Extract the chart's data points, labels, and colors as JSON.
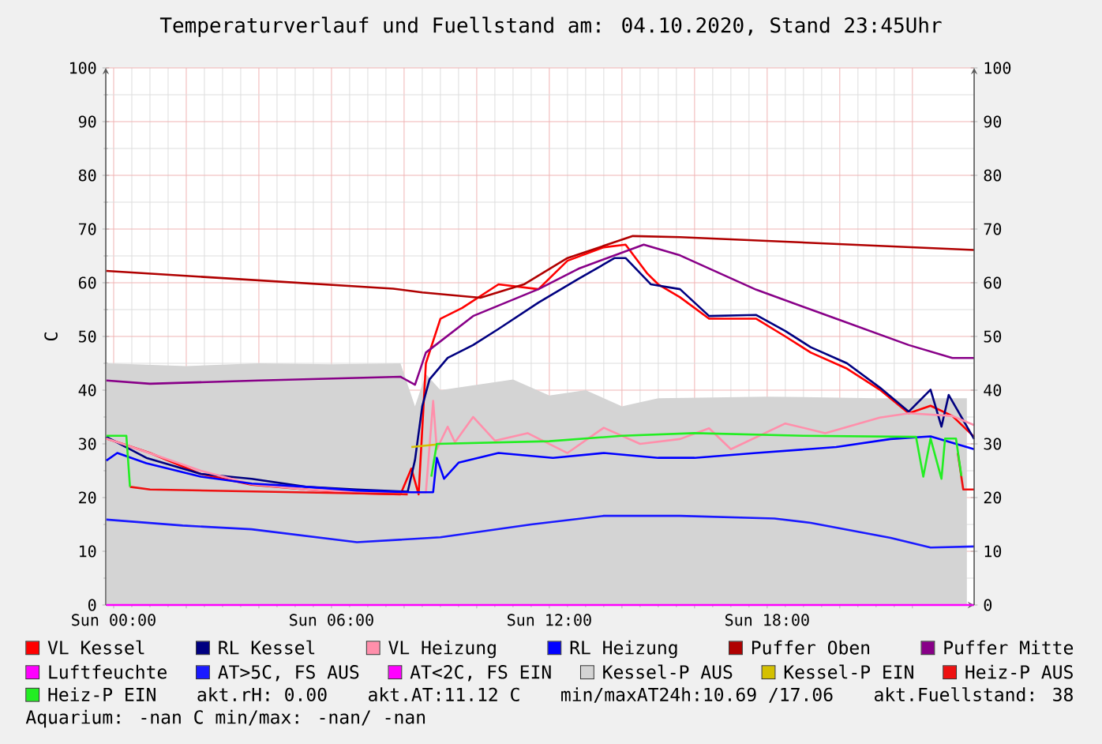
{
  "chart_data": {
    "type": "line",
    "title": "Temperaturverlauf und Fuellstand am: 04.10.2020, Stand 23:45Uhr",
    "ylabel": "C",
    "xlim": [
      "2020-10-03T23:47",
      "2020-10-04T23:42"
    ],
    "ylim": [
      0,
      100
    ],
    "y2lim": [
      0,
      100
    ],
    "xticks": [
      {
        "value": "2020-10-04T00:00",
        "label": "Sun 00:00"
      },
      {
        "value": "2020-10-04T02:00",
        "label": null
      },
      {
        "value": "2020-10-04T04:00",
        "label": null
      },
      {
        "value": "2020-10-04T06:00",
        "label": "Sun 06:00"
      },
      {
        "value": "2020-10-04T08:00",
        "label": null
      },
      {
        "value": "2020-10-04T10:00",
        "label": null
      },
      {
        "value": "2020-10-04T12:00",
        "label": "Sun 12:00"
      },
      {
        "value": "2020-10-04T14:00",
        "label": null
      },
      {
        "value": "2020-10-04T16:00",
        "label": null
      },
      {
        "value": "2020-10-04T18:00",
        "label": "Sun 18:00"
      },
      {
        "value": "2020-10-04T20:00",
        "label": null
      },
      {
        "value": "2020-10-04T22:00",
        "label": null
      }
    ],
    "yticks": [
      0,
      10,
      20,
      30,
      40,
      50,
      60,
      70,
      80,
      90,
      100
    ],
    "y2ticks": [
      0,
      10,
      20,
      30,
      40,
      50,
      60,
      70,
      80,
      90,
      100
    ],
    "grid": true,
    "legend": "bottom",
    "series": [
      {
        "name": "VL Kessel",
        "color": "#ff0000",
        "x": [
          "2020-10-03T23:48",
          "2020-10-04T01:00",
          "2020-10-04T02:24",
          "2020-10-04T03:48",
          "2020-10-04T05:18",
          "2020-10-04T06:42",
          "2020-10-04T07:54",
          "2020-10-04T08:12",
          "2020-10-04T08:24",
          "2020-10-04T08:36",
          "2020-10-04T09:00",
          "2020-10-04T09:36",
          "2020-10-04T10:36",
          "2020-10-04T11:42",
          "2020-10-04T12:30",
          "2020-10-04T13:30",
          "2020-10-04T14:06",
          "2020-10-04T14:42",
          "2020-10-04T15:00",
          "2020-10-04T15:36",
          "2020-10-04T16:24",
          "2020-10-04T17:42",
          "2020-10-04T18:30",
          "2020-10-04T19:12",
          "2020-10-04T20:12",
          "2020-10-04T21:06",
          "2020-10-04T21:54",
          "2020-10-04T22:30",
          "2020-10-04T23:06",
          "2020-10-04T23:42"
        ],
        "values": [
          31,
          28.3,
          24.4,
          22.4,
          21.5,
          20.8,
          20.6,
          25.4,
          20.6,
          45,
          53.3,
          55.3,
          59.7,
          58.8,
          64.1,
          66.6,
          67.1,
          61.7,
          59.7,
          57.3,
          53.3,
          53.3,
          50,
          47,
          44,
          40.1,
          35.7,
          37.1,
          35.2,
          31.3
        ]
      },
      {
        "name": "RL Kessel",
        "color": "#000080",
        "x": [
          "2020-10-03T23:48",
          "2020-10-04T00:54",
          "2020-10-04T02:24",
          "2020-10-04T03:48",
          "2020-10-04T05:18",
          "2020-10-04T06:42",
          "2020-10-04T08:06",
          "2020-10-04T08:18",
          "2020-10-04T08:30",
          "2020-10-04T08:42",
          "2020-10-04T09:12",
          "2020-10-04T09:54",
          "2020-10-04T10:36",
          "2020-10-04T11:42",
          "2020-10-04T12:48",
          "2020-10-04T13:48",
          "2020-10-04T14:06",
          "2020-10-04T14:48",
          "2020-10-04T15:36",
          "2020-10-04T16:24",
          "2020-10-04T17:42",
          "2020-10-04T18:30",
          "2020-10-04T19:12",
          "2020-10-04T20:12",
          "2020-10-04T21:06",
          "2020-10-04T21:54",
          "2020-10-04T22:30",
          "2020-10-04T22:48",
          "2020-10-04T23:00",
          "2020-10-04T23:42"
        ],
        "values": [
          31.3,
          27.4,
          24.4,
          23.5,
          22,
          21.5,
          21.1,
          27,
          37,
          42,
          46,
          48.4,
          51.4,
          56.3,
          60.7,
          64.6,
          64.6,
          59.7,
          58.8,
          53.8,
          54,
          51,
          48,
          45,
          40.5,
          36,
          40.1,
          33.2,
          39.1,
          30.9
        ]
      },
      {
        "name": "VL Heizung",
        "color": "#ff8fab",
        "x": [
          "2020-10-03T23:48",
          "2020-10-04T00:54",
          "2020-10-04T02:24",
          "2020-10-04T03:48",
          "2020-10-04T05:18",
          "2020-10-04T06:42",
          "2020-10-04T08:06",
          "2020-10-04T08:36",
          "2020-10-04T08:48",
          "2020-10-04T08:54",
          "2020-10-04T09:12",
          "2020-10-04T09:24",
          "2020-10-04T09:54",
          "2020-10-04T10:30",
          "2020-10-04T11:24",
          "2020-10-04T12:30",
          "2020-10-04T13:30",
          "2020-10-04T14:30",
          "2020-10-04T15:36",
          "2020-10-04T16:24",
          "2020-10-04T17:00",
          "2020-10-04T18:30",
          "2020-10-04T19:36",
          "2020-10-04T21:06",
          "2020-10-04T21:54",
          "2020-10-04T23:06",
          "2020-10-04T23:42"
        ],
        "values": [
          31,
          28.5,
          25,
          22.5,
          21.5,
          21,
          21,
          21,
          38,
          29,
          33.2,
          30.3,
          35,
          30.6,
          32,
          28.3,
          33,
          30,
          30.9,
          32.9,
          29,
          33.8,
          32,
          34.9,
          35.7,
          35.2,
          33.5
        ]
      },
      {
        "name": "RL Heizung",
        "color": "#0000ff",
        "x": [
          "2020-10-03T23:48",
          "2020-10-04T00:06",
          "2020-10-04T00:54",
          "2020-10-04T02:24",
          "2020-10-04T03:48",
          "2020-10-04T05:18",
          "2020-10-04T06:42",
          "2020-10-04T08:12",
          "2020-10-04T08:48",
          "2020-10-04T08:54",
          "2020-10-04T09:06",
          "2020-10-04T09:30",
          "2020-10-04T10:36",
          "2020-10-04T12:06",
          "2020-10-04T13:30",
          "2020-10-04T15:00",
          "2020-10-04T16:00",
          "2020-10-04T17:42",
          "2020-10-04T19:54",
          "2020-10-04T21:24",
          "2020-10-04T22:30",
          "2020-10-04T23:42"
        ],
        "values": [
          26.9,
          28.3,
          26.4,
          23.9,
          22.6,
          22,
          21.3,
          21,
          21,
          27.4,
          23.5,
          26.5,
          28.3,
          27.4,
          28.3,
          27.4,
          27.4,
          28.3,
          29.4,
          30.9,
          31.4,
          29
        ]
      },
      {
        "name": "Puffer Oben",
        "color": "#b00000",
        "x": [
          "2020-10-03T23:48",
          "2020-10-04T07:42",
          "2020-10-04T08:30",
          "2020-10-04T10:06",
          "2020-10-04T11:18",
          "2020-10-04T12:30",
          "2020-10-04T14:18",
          "2020-10-04T15:36",
          "2020-10-04T23:42"
        ],
        "values": [
          62.2,
          58.9,
          58.2,
          57.2,
          59.7,
          64.6,
          68.7,
          68.5,
          66.1
        ]
      },
      {
        "name": "Puffer Mitte",
        "color": "#880088",
        "x": [
          "2020-10-03T23:48",
          "2020-10-04T01:00",
          "2020-10-04T04:00",
          "2020-10-04T07:54",
          "2020-10-04T08:18",
          "2020-10-04T08:36",
          "2020-10-04T09:54",
          "2020-10-04T11:42",
          "2020-10-04T12:48",
          "2020-10-04T14:36",
          "2020-10-04T15:36",
          "2020-10-04T17:42",
          "2020-10-04T19:54",
          "2020-10-04T21:54",
          "2020-10-04T23:06",
          "2020-10-04T23:42"
        ],
        "values": [
          41.8,
          41.2,
          41.8,
          42.5,
          41,
          47,
          53.8,
          58.8,
          62.6,
          67.1,
          65.1,
          58.7,
          53.3,
          48.4,
          46,
          46
        ]
      },
      {
        "name": "Luftfeuchte",
        "color": "#ff00ff",
        "x": [
          "2020-10-03T23:48",
          "2020-10-04T23:42"
        ],
        "values": [
          0,
          0
        ]
      },
      {
        "name": "AT>5C, FS AUS",
        "color": "#1a1aff",
        "x": [
          "2020-10-03T23:48",
          "2020-10-04T01:54",
          "2020-10-04T03:48",
          "2020-10-04T06:42",
          "2020-10-04T09:00",
          "2020-10-04T11:30",
          "2020-10-04T13:30",
          "2020-10-04T15:36",
          "2020-10-04T18:12",
          "2020-10-04T19:12",
          "2020-10-04T21:24",
          "2020-10-04T22:30",
          "2020-10-04T23:42"
        ],
        "values": [
          15.9,
          14.8,
          14.1,
          11.7,
          12.6,
          15,
          16.6,
          16.6,
          16.1,
          15.3,
          12.5,
          10.7,
          10.9
        ]
      },
      {
        "name": "AT<2C, FS EIN",
        "color": "#ff00ff"
      },
      {
        "name": "Kessel-P AUS",
        "color": "#d4d4d4",
        "type": "area",
        "x": [
          "2020-10-03T23:48",
          "2020-10-04T02:00",
          "2020-10-04T04:00",
          "2020-10-04T06:00",
          "2020-10-04T07:54",
          "2020-10-04T08:18",
          "2020-10-04T08:36",
          "2020-10-04T09:00",
          "2020-10-04T10:00",
          "2020-10-04T11:00",
          "2020-10-04T12:00",
          "2020-10-04T13:00",
          "2020-10-04T14:00",
          "2020-10-04T15:00",
          "2020-10-04T18:00",
          "2020-10-04T21:00",
          "2020-10-04T23:30"
        ],
        "values": [
          45,
          44.5,
          45,
          44.8,
          45,
          37,
          43,
          40,
          41,
          42,
          39,
          40,
          37,
          38.5,
          38.8,
          38.5,
          38.5
        ]
      },
      {
        "name": "Kessel-P EIN",
        "color": "#d4c000",
        "x": [
          "2020-10-04T08:12",
          "2020-10-04T08:54"
        ],
        "values": [
          29.4,
          29.9
        ]
      },
      {
        "name": "Heiz-P AUS",
        "color": "#ee1111",
        "x": [
          "2020-10-04T00:27",
          "2020-10-04T01:00",
          "2020-10-04T08:06",
          "2020-10-04T08:09",
          "2020-10-04T23:15",
          "2020-10-04T23:24",
          "2020-10-04T23:42"
        ],
        "values": [
          22,
          21.5,
          20.6,
          null,
          28.3,
          21.5,
          21.5
        ]
      },
      {
        "name": "Heiz-P EIN",
        "color": "#22ee22",
        "x": [
          "2020-10-03T23:48",
          "2020-10-04T00:21",
          "2020-10-04T00:27",
          "2020-10-04T00:30",
          "2020-10-04T08:45",
          "2020-10-04T08:54",
          "2020-10-04T12:00",
          "2020-10-04T14:00",
          "2020-10-04T16:00",
          "2020-10-04T19:00",
          "2020-10-04T22:06",
          "2020-10-04T22:18",
          "2020-10-04T22:30",
          "2020-10-04T22:48",
          "2020-10-04T22:54",
          "2020-10-04T23:00",
          "2020-10-04T23:12",
          "2020-10-04T23:21"
        ],
        "values": [
          31.5,
          31.5,
          22,
          null,
          23.9,
          30,
          30.5,
          31.5,
          32,
          31.5,
          31.3,
          23.9,
          31,
          23.5,
          31,
          31,
          31,
          24
        ]
      }
    ],
    "annotations": [
      "akt.rH: 0.00",
      "akt.AT:11.12 C",
      "min/maxAT24h:10.69 /17.06",
      "akt.Fuellstand:   38",
      "Aquarium: -nan C  min/max: -nan/ -nan"
    ]
  }
}
